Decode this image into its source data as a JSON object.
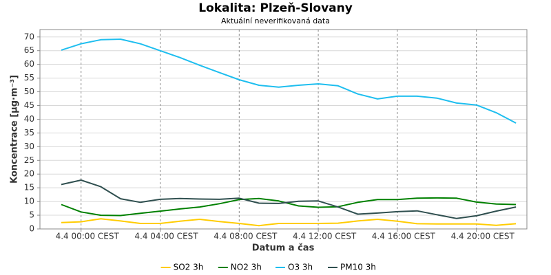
{
  "chart_data": {
    "type": "line",
    "title": "Lokalita: Plzeň-Slovany",
    "subtitle": "Aktuální neverifikovaná data",
    "x_label": "Datum a čas",
    "y_label": "Koncentrace [µg·m⁻³]",
    "categories": [
      null,
      "4.4 00:00 CEST",
      null,
      null,
      null,
      "4.4 04:00 CEST",
      null,
      null,
      null,
      "4.4 08:00 CEST",
      null,
      null,
      null,
      "4.4 12:00 CEST",
      null,
      null,
      null,
      "4.4 16:00 CEST",
      null,
      null,
      null,
      "4.4 20:00 CEST",
      null,
      null
    ],
    "series": [
      {
        "name": "SO2 3h",
        "color": "#ffcc00",
        "values": [
          2.3,
          2.6,
          3.7,
          2.9,
          2.0,
          2.0,
          2.8,
          3.5,
          2.7,
          2.0,
          1.2,
          2.0,
          2.0,
          2.0,
          2.1,
          2.9,
          3.5,
          2.8,
          1.9,
          1.8,
          1.8,
          1.8,
          1.3,
          1.9
        ]
      },
      {
        "name": "NO2 3h",
        "color": "#008000",
        "values": [
          8.9,
          6.2,
          5.0,
          4.9,
          5.7,
          6.5,
          7.3,
          8.0,
          9.2,
          10.7,
          11.1,
          10.2,
          8.4,
          7.9,
          8.1,
          9.7,
          10.7,
          10.7,
          11.2,
          11.3,
          11.2,
          9.8,
          9.1,
          8.9
        ]
      },
      {
        "name": "O3 3h",
        "color": "#1ebeef",
        "values": [
          65.2,
          67.5,
          69.0,
          69.2,
          67.5,
          65.0,
          62.5,
          59.7,
          57.0,
          54.4,
          52.4,
          51.7,
          52.4,
          52.9,
          52.2,
          49.2,
          47.4,
          48.4,
          48.4,
          47.7,
          45.9,
          45.2,
          42.4,
          38.6
        ]
      },
      {
        "name": "PM10 3h",
        "color": "#2f4f4f",
        "values": [
          16.2,
          17.8,
          15.4,
          11.0,
          9.7,
          10.8,
          11.1,
          10.9,
          10.8,
          11.2,
          9.4,
          9.3,
          10.1,
          10.2,
          8.0,
          5.4,
          5.8,
          6.3,
          6.6,
          5.2,
          3.8,
          4.8,
          6.5,
          8.0
        ]
      }
    ],
    "ylim": [
      0,
      72.7
    ],
    "yticks": [
      0,
      5,
      10,
      15,
      20,
      25,
      30,
      35,
      40,
      45,
      50,
      55,
      60,
      65,
      70
    ],
    "grid": true,
    "legend": "bottom"
  }
}
